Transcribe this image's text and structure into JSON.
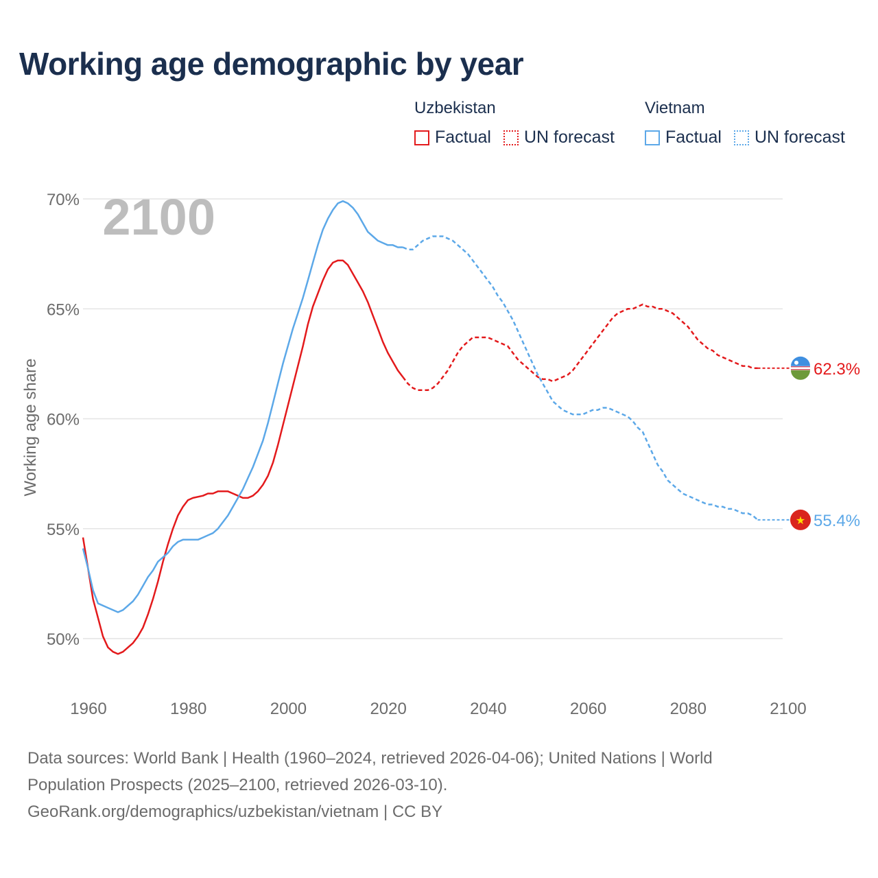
{
  "title": "Working age demographic by year",
  "legend": {
    "groups": [
      {
        "name": "Uzbekistan",
        "color": "#e31a1c",
        "factual_label": "Factual",
        "forecast_label": "UN forecast"
      },
      {
        "name": "Vietnam",
        "color": "#5ca8e8",
        "factual_label": "Factual",
        "forecast_label": "UN forecast"
      }
    ]
  },
  "year_watermark": "2100",
  "footer": {
    "line1": "Data sources: World Bank | Health (1960–2024, retrieved 2026-04-06); United Nations | World",
    "line2": "Population Prospects (2025–2100, retrieved 2026-03-10).",
    "line3": "GeoRank.org/demographics/uzbekistan/vietnam | CC BY"
  },
  "chart_data": {
    "type": "line",
    "title": "Working age demographic by year",
    "xlabel": "",
    "ylabel": "Working age share",
    "xlim": [
      1960,
      2100
    ],
    "ylim": [
      48,
      71
    ],
    "x_ticks": [
      1960,
      1980,
      2000,
      2020,
      2040,
      2060,
      2080,
      2100
    ],
    "y_ticks": [
      50,
      55,
      60,
      65,
      70
    ],
    "y_tick_labels": [
      "50%",
      "55%",
      "60%",
      "65%",
      "70%"
    ],
    "factual_until": 2024,
    "grid": true,
    "series": [
      {
        "name": "Uzbekistan",
        "color": "#e31a1c",
        "end_label": "62.3%",
        "points": [
          [
            1960,
            54.6
          ],
          [
            1962,
            51.8
          ],
          [
            1964,
            50.1
          ],
          [
            1965,
            49.6
          ],
          [
            1966,
            49.4
          ],
          [
            1967,
            49.3
          ],
          [
            1968,
            49.4
          ],
          [
            1970,
            49.8
          ],
          [
            1971,
            50.1
          ],
          [
            1972,
            50.5
          ],
          [
            1973,
            51.1
          ],
          [
            1974,
            51.8
          ],
          [
            1975,
            52.6
          ],
          [
            1976,
            53.5
          ],
          [
            1977,
            54.3
          ],
          [
            1978,
            55.0
          ],
          [
            1979,
            55.6
          ],
          [
            1980,
            56.0
          ],
          [
            1981,
            56.3
          ],
          [
            1982,
            56.4
          ],
          [
            1984,
            56.5
          ],
          [
            1985,
            56.6
          ],
          [
            1986,
            56.6
          ],
          [
            1987,
            56.7
          ],
          [
            1989,
            56.7
          ],
          [
            1990,
            56.6
          ],
          [
            1991,
            56.5
          ],
          [
            1992,
            56.4
          ],
          [
            1993,
            56.4
          ],
          [
            1994,
            56.5
          ],
          [
            1995,
            56.7
          ],
          [
            1996,
            57.0
          ],
          [
            1997,
            57.4
          ],
          [
            1998,
            58.0
          ],
          [
            1999,
            58.8
          ],
          [
            2000,
            59.7
          ],
          [
            2001,
            60.6
          ],
          [
            2002,
            61.5
          ],
          [
            2003,
            62.4
          ],
          [
            2004,
            63.3
          ],
          [
            2005,
            64.3
          ],
          [
            2006,
            65.1
          ],
          [
            2007,
            65.7
          ],
          [
            2008,
            66.3
          ],
          [
            2009,
            66.8
          ],
          [
            2010,
            67.1
          ],
          [
            2011,
            67.2
          ],
          [
            2012,
            67.2
          ],
          [
            2013,
            67.0
          ],
          [
            2014,
            66.6
          ],
          [
            2015,
            66.2
          ],
          [
            2016,
            65.8
          ],
          [
            2017,
            65.3
          ],
          [
            2018,
            64.7
          ],
          [
            2019,
            64.1
          ],
          [
            2020,
            63.5
          ],
          [
            2021,
            63.0
          ],
          [
            2022,
            62.6
          ],
          [
            2023,
            62.2
          ],
          [
            2024,
            61.9
          ],
          [
            2025,
            61.6
          ],
          [
            2026,
            61.4
          ],
          [
            2027,
            61.3
          ],
          [
            2028,
            61.3
          ],
          [
            2029,
            61.3
          ],
          [
            2030,
            61.4
          ],
          [
            2031,
            61.6
          ],
          [
            2032,
            61.9
          ],
          [
            2033,
            62.2
          ],
          [
            2034,
            62.6
          ],
          [
            2035,
            63.0
          ],
          [
            2036,
            63.3
          ],
          [
            2037,
            63.5
          ],
          [
            2038,
            63.7
          ],
          [
            2039,
            63.7
          ],
          [
            2040,
            63.7
          ],
          [
            2041,
            63.7
          ],
          [
            2042,
            63.6
          ],
          [
            2043,
            63.5
          ],
          [
            2044,
            63.4
          ],
          [
            2045,
            63.3
          ],
          [
            2046,
            63.0
          ],
          [
            2047,
            62.7
          ],
          [
            2048,
            62.5
          ],
          [
            2049,
            62.3
          ],
          [
            2050,
            62.1
          ],
          [
            2051,
            61.9
          ],
          [
            2052,
            61.8
          ],
          [
            2053,
            61.8
          ],
          [
            2054,
            61.7
          ],
          [
            2055,
            61.8
          ],
          [
            2056,
            61.9
          ],
          [
            2057,
            62.0
          ],
          [
            2058,
            62.2
          ],
          [
            2059,
            62.5
          ],
          [
            2060,
            62.8
          ],
          [
            2061,
            63.1
          ],
          [
            2062,
            63.4
          ],
          [
            2063,
            63.7
          ],
          [
            2064,
            64.0
          ],
          [
            2065,
            64.3
          ],
          [
            2066,
            64.6
          ],
          [
            2067,
            64.8
          ],
          [
            2068,
            64.9
          ],
          [
            2069,
            65.0
          ],
          [
            2070,
            65.0
          ],
          [
            2071,
            65.1
          ],
          [
            2072,
            65.2
          ],
          [
            2073,
            65.1
          ],
          [
            2074,
            65.1
          ],
          [
            2075,
            65.0
          ],
          [
            2076,
            65.0
          ],
          [
            2077,
            64.9
          ],
          [
            2078,
            64.8
          ],
          [
            2079,
            64.6
          ],
          [
            2080,
            64.4
          ],
          [
            2081,
            64.2
          ],
          [
            2082,
            63.9
          ],
          [
            2083,
            63.6
          ],
          [
            2084,
            63.4
          ],
          [
            2085,
            63.2
          ],
          [
            2086,
            63.1
          ],
          [
            2087,
            62.9
          ],
          [
            2088,
            62.8
          ],
          [
            2089,
            62.7
          ],
          [
            2090,
            62.6
          ],
          [
            2091,
            62.5
          ],
          [
            2092,
            62.4
          ],
          [
            2093,
            62.4
          ],
          [
            2094,
            62.3
          ],
          [
            2095,
            62.3
          ]
        ]
      },
      {
        "name": "Vietnam",
        "color": "#5ca8e8",
        "end_label": "55.4%",
        "points": [
          [
            1960,
            54.1
          ],
          [
            1961,
            53.2
          ],
          [
            1962,
            52.2
          ],
          [
            1963,
            51.6
          ],
          [
            1965,
            51.4
          ],
          [
            1967,
            51.2
          ],
          [
            1968,
            51.3
          ],
          [
            1970,
            51.7
          ],
          [
            1971,
            52.0
          ],
          [
            1972,
            52.4
          ],
          [
            1973,
            52.8
          ],
          [
            1974,
            53.1
          ],
          [
            1975,
            53.5
          ],
          [
            1976,
            53.7
          ],
          [
            1977,
            53.9
          ],
          [
            1978,
            54.2
          ],
          [
            1979,
            54.4
          ],
          [
            1980,
            54.5
          ],
          [
            1981,
            54.5
          ],
          [
            1983,
            54.5
          ],
          [
            1984,
            54.6
          ],
          [
            1985,
            54.7
          ],
          [
            1986,
            54.8
          ],
          [
            1987,
            55.0
          ],
          [
            1988,
            55.3
          ],
          [
            1989,
            55.6
          ],
          [
            1990,
            56.0
          ],
          [
            1991,
            56.4
          ],
          [
            1992,
            56.8
          ],
          [
            1993,
            57.3
          ],
          [
            1994,
            57.8
          ],
          [
            1995,
            58.4
          ],
          [
            1996,
            59.0
          ],
          [
            1997,
            59.8
          ],
          [
            1998,
            60.7
          ],
          [
            1999,
            61.6
          ],
          [
            2000,
            62.5
          ],
          [
            2001,
            63.3
          ],
          [
            2002,
            64.1
          ],
          [
            2003,
            64.8
          ],
          [
            2004,
            65.5
          ],
          [
            2005,
            66.3
          ],
          [
            2006,
            67.1
          ],
          [
            2007,
            67.9
          ],
          [
            2008,
            68.6
          ],
          [
            2009,
            69.1
          ],
          [
            2010,
            69.5
          ],
          [
            2011,
            69.8
          ],
          [
            2012,
            69.9
          ],
          [
            2013,
            69.8
          ],
          [
            2014,
            69.6
          ],
          [
            2015,
            69.3
          ],
          [
            2016,
            68.9
          ],
          [
            2017,
            68.5
          ],
          [
            2018,
            68.3
          ],
          [
            2019,
            68.1
          ],
          [
            2020,
            68.0
          ],
          [
            2021,
            67.9
          ],
          [
            2022,
            67.9
          ],
          [
            2023,
            67.8
          ],
          [
            2024,
            67.8
          ],
          [
            2025,
            67.7
          ],
          [
            2026,
            67.7
          ],
          [
            2027,
            67.9
          ],
          [
            2028,
            68.1
          ],
          [
            2029,
            68.2
          ],
          [
            2030,
            68.3
          ],
          [
            2031,
            68.3
          ],
          [
            2032,
            68.3
          ],
          [
            2033,
            68.2
          ],
          [
            2034,
            68.1
          ],
          [
            2035,
            67.9
          ],
          [
            2036,
            67.7
          ],
          [
            2037,
            67.5
          ],
          [
            2038,
            67.2
          ],
          [
            2039,
            66.9
          ],
          [
            2040,
            66.6
          ],
          [
            2041,
            66.3
          ],
          [
            2042,
            66.0
          ],
          [
            2043,
            65.6
          ],
          [
            2044,
            65.3
          ],
          [
            2045,
            64.9
          ],
          [
            2046,
            64.5
          ],
          [
            2047,
            64.0
          ],
          [
            2048,
            63.5
          ],
          [
            2049,
            63.0
          ],
          [
            2050,
            62.5
          ],
          [
            2051,
            62.0
          ],
          [
            2052,
            61.6
          ],
          [
            2053,
            61.2
          ],
          [
            2054,
            60.8
          ],
          [
            2055,
            60.6
          ],
          [
            2056,
            60.4
          ],
          [
            2057,
            60.3
          ],
          [
            2058,
            60.2
          ],
          [
            2059,
            60.2
          ],
          [
            2060,
            60.2
          ],
          [
            2061,
            60.3
          ],
          [
            2062,
            60.4
          ],
          [
            2063,
            60.4
          ],
          [
            2064,
            60.5
          ],
          [
            2065,
            60.5
          ],
          [
            2066,
            60.4
          ],
          [
            2067,
            60.3
          ],
          [
            2068,
            60.2
          ],
          [
            2069,
            60.1
          ],
          [
            2070,
            59.9
          ],
          [
            2071,
            59.6
          ],
          [
            2072,
            59.4
          ],
          [
            2073,
            58.9
          ],
          [
            2074,
            58.4
          ],
          [
            2075,
            57.9
          ],
          [
            2076,
            57.6
          ],
          [
            2077,
            57.2
          ],
          [
            2078,
            57.0
          ],
          [
            2079,
            56.8
          ],
          [
            2080,
            56.6
          ],
          [
            2081,
            56.5
          ],
          [
            2082,
            56.4
          ],
          [
            2083,
            56.3
          ],
          [
            2084,
            56.2
          ],
          [
            2085,
            56.1
          ],
          [
            2086,
            56.1
          ],
          [
            2087,
            56.0
          ],
          [
            2088,
            56.0
          ],
          [
            2089,
            55.9
          ],
          [
            2090,
            55.9
          ],
          [
            2091,
            55.8
          ],
          [
            2092,
            55.7
          ],
          [
            2093,
            55.7
          ],
          [
            2094,
            55.6
          ],
          [
            2095,
            55.4
          ]
        ]
      }
    ]
  }
}
